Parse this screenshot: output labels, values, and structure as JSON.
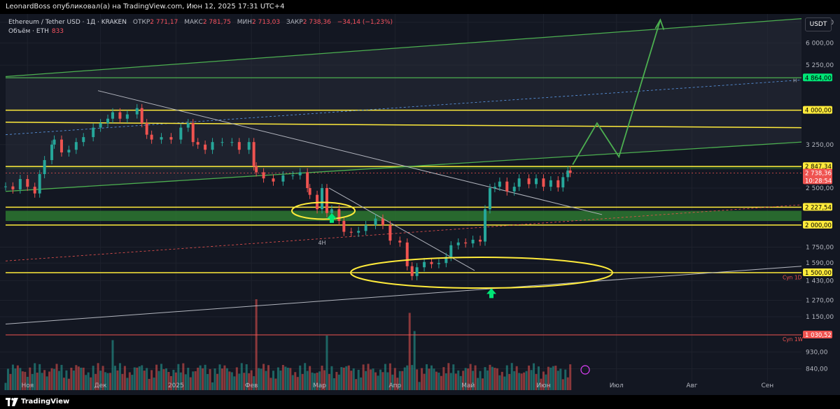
{
  "header": {
    "publisher_line": "LeonardBoss опубликовал(а) на TradingView.com, Июн 12, 2025 17:31 UTC+4"
  },
  "legend": {
    "symbol": "Ethereum / Tether USD · 1Д · KRAKEN",
    "open_label": "ОТКР",
    "open_value": "2 771,17",
    "high_label": "МАКС",
    "high_value": "2 781,75",
    "low_label": "МИН",
    "low_value": "2 713,03",
    "close_label": "ЗАКР",
    "close_value": "2 738,36",
    "change": "−34,14 (−1,23%)",
    "volume_label": "Объём · ETH",
    "volume_value": "833"
  },
  "currency_button": "USDT",
  "footer": {
    "brand": "TradingView"
  },
  "colors": {
    "background": "#131722",
    "up": "#26a69a",
    "down": "#ef5350",
    "level": "#ffeb3b",
    "channel": "#4caf50",
    "zone": "#2e7d32",
    "trendline": "#b2b5be"
  },
  "chart_data": {
    "type": "candlestick",
    "y_scale": "log",
    "ylim": [
      780,
      7000
    ],
    "y_ticks": [
      {
        "v": 6800,
        "label": "6 800,00"
      },
      {
        "v": 6000,
        "label": "6 000,00"
      },
      {
        "v": 5250,
        "label": "5 250,00"
      },
      {
        "v": 3250,
        "label": "3 250,00"
      },
      {
        "v": 2500,
        "label": "2 500,00"
      },
      {
        "v": 1750,
        "label": "1 750,00"
      },
      {
        "v": 1590,
        "label": "1 590,00"
      },
      {
        "v": 1430,
        "label": "1 430,00"
      },
      {
        "v": 1270,
        "label": "1 270,00"
      },
      {
        "v": 1150,
        "label": "1 150,00"
      },
      {
        "v": 930,
        "label": "930,00"
      },
      {
        "v": 840,
        "label": "840,00"
      }
    ],
    "x_range": [
      "2024-10-23",
      "2025-09-15"
    ],
    "x_ticks": [
      {
        "date": "2024-11-01",
        "label": "Ноя"
      },
      {
        "date": "2024-12-01",
        "label": "Дек"
      },
      {
        "date": "2025-01-01",
        "label": "2025"
      },
      {
        "date": "2025-02-01",
        "label": "Фев"
      },
      {
        "date": "2025-03-01",
        "label": "Мар"
      },
      {
        "date": "2025-04-01",
        "label": "Апр"
      },
      {
        "date": "2025-05-01",
        "label": "Май"
      },
      {
        "date": "2025-06-01",
        "label": "Июн"
      },
      {
        "date": "2025-07-01",
        "label": "Июл"
      },
      {
        "date": "2025-08-01",
        "label": "Авг"
      },
      {
        "date": "2025-09-01",
        "label": "Сен"
      }
    ],
    "price_labels": [
      {
        "v": 4864,
        "label": "4 864,00",
        "bg": "#00e676",
        "fg": "#000000"
      },
      {
        "v": 4000,
        "label": "4 000,00",
        "bg": "#ffeb3b",
        "fg": "#000000"
      },
      {
        "v": 2847.34,
        "label": "2 847,34",
        "bg": "#ffeb3b",
        "fg": "#000000"
      },
      {
        "v": 2738.36,
        "label": "2 738,36",
        "label2": "10:28:54",
        "bg": "#ef5350",
        "fg": "#ffffff"
      },
      {
        "v": 2227.54,
        "label": "2 227,54",
        "bg": "#ffeb3b",
        "fg": "#000000"
      },
      {
        "v": 2000,
        "label": "2 000,00",
        "bg": "#ffeb3b",
        "fg": "#000000"
      },
      {
        "v": 1500,
        "label": "1 500,00",
        "bg": "#ffeb3b",
        "fg": "#000000"
      },
      {
        "v": 1030.52,
        "label": "1 030,52",
        "bg": "#ef5350",
        "fg": "#ffffff"
      }
    ],
    "annotations": [
      {
        "text": "Сyn 1D",
        "v": 1460
      },
      {
        "text": "Сyn 1W",
        "v": 1005
      },
      {
        "text": "4H",
        "date": "2025-03-02",
        "v": 1870
      },
      {
        "text": "H",
        "v": 4800
      }
    ],
    "horizontal_levels": [
      4864,
      4000,
      2847.34,
      2227.54,
      2000,
      1500
    ],
    "demand_zone": [
      2050,
      2180
    ],
    "resistance_zone": [
      2800,
      2860
    ],
    "closes": [
      [
        "2024-10-23",
        2525
      ],
      [
        "2024-10-26",
        2480
      ],
      [
        "2024-10-29",
        2640
      ],
      [
        "2024-11-01",
        2520
      ],
      [
        "2024-11-04",
        2420
      ],
      [
        "2024-11-06",
        2720
      ],
      [
        "2024-11-08",
        2960
      ],
      [
        "2024-11-11",
        3250
      ],
      [
        "2024-11-12",
        3350
      ],
      [
        "2024-11-15",
        3100
      ],
      [
        "2024-11-18",
        3150
      ],
      [
        "2024-11-21",
        3300
      ],
      [
        "2024-11-24",
        3400
      ],
      [
        "2024-11-28",
        3600
      ],
      [
        "2024-12-01",
        3700
      ],
      [
        "2024-12-04",
        3800
      ],
      [
        "2024-12-06",
        3950
      ],
      [
        "2024-12-09",
        3800
      ],
      [
        "2024-12-12",
        3900
      ],
      [
        "2024-12-16",
        4050
      ],
      [
        "2024-12-18",
        3700
      ],
      [
        "2024-12-20",
        3450
      ],
      [
        "2024-12-22",
        3350
      ],
      [
        "2024-12-26",
        3400
      ],
      [
        "2024-12-30",
        3350
      ],
      [
        "2025-01-03",
        3600
      ],
      [
        "2025-01-06",
        3700
      ],
      [
        "2025-01-08",
        3300
      ],
      [
        "2025-01-10",
        3250
      ],
      [
        "2025-01-13",
        3150
      ],
      [
        "2025-01-16",
        3300
      ],
      [
        "2025-01-20",
        3300
      ],
      [
        "2025-01-24",
        3300
      ],
      [
        "2025-01-27",
        3150
      ],
      [
        "2025-01-31",
        3300
      ],
      [
        "2025-02-02",
        2850
      ],
      [
        "2025-02-03",
        2750
      ],
      [
        "2025-02-06",
        2650
      ],
      [
        "2025-02-10",
        2600
      ],
      [
        "2025-02-14",
        2700
      ],
      [
        "2025-02-18",
        2700
      ],
      [
        "2025-02-21",
        2750
      ],
      [
        "2025-02-24",
        2500
      ],
      [
        "2025-02-25",
        2400
      ],
      [
        "2025-02-28",
        2200
      ],
      [
        "2025-03-02",
        2500
      ],
      [
        "2025-03-04",
        2150
      ],
      [
        "2025-03-06",
        2200
      ],
      [
        "2025-03-09",
        2050
      ],
      [
        "2025-03-11",
        1920
      ],
      [
        "2025-03-14",
        1910
      ],
      [
        "2025-03-17",
        1930
      ],
      [
        "2025-03-20",
        2000
      ],
      [
        "2025-03-24",
        2080
      ],
      [
        "2025-03-27",
        2000
      ],
      [
        "2025-03-30",
        1820
      ],
      [
        "2025-04-03",
        1800
      ],
      [
        "2025-04-06",
        1560
      ],
      [
        "2025-04-08",
        1470
      ],
      [
        "2025-04-10",
        1550
      ],
      [
        "2025-04-13",
        1600
      ],
      [
        "2025-04-16",
        1580
      ],
      [
        "2025-04-19",
        1590
      ],
      [
        "2025-04-22",
        1650
      ],
      [
        "2025-04-24",
        1770
      ],
      [
        "2025-04-27",
        1800
      ],
      [
        "2025-04-30",
        1790
      ],
      [
        "2025-05-03",
        1830
      ],
      [
        "2025-05-06",
        1810
      ],
      [
        "2025-05-08",
        2200
      ],
      [
        "2025-05-10",
        2500
      ],
      [
        "2025-05-12",
        2520
      ],
      [
        "2025-05-14",
        2600
      ],
      [
        "2025-05-17",
        2450
      ],
      [
        "2025-05-20",
        2520
      ],
      [
        "2025-05-22",
        2650
      ],
      [
        "2025-05-26",
        2560
      ],
      [
        "2025-05-29",
        2650
      ],
      [
        "2025-06-01",
        2520
      ],
      [
        "2025-06-04",
        2620
      ],
      [
        "2025-06-07",
        2510
      ],
      [
        "2025-06-09",
        2670
      ],
      [
        "2025-06-11",
        2780
      ],
      [
        "2025-06-12",
        2738.36
      ]
    ],
    "volume_peaks": [
      [
        "2025-02-03",
        1.0
      ],
      [
        "2025-04-07",
        0.85
      ],
      [
        "2025-04-09",
        0.65
      ],
      [
        "2024-12-06",
        0.55
      ],
      [
        "2025-03-04",
        0.6
      ]
    ]
  }
}
